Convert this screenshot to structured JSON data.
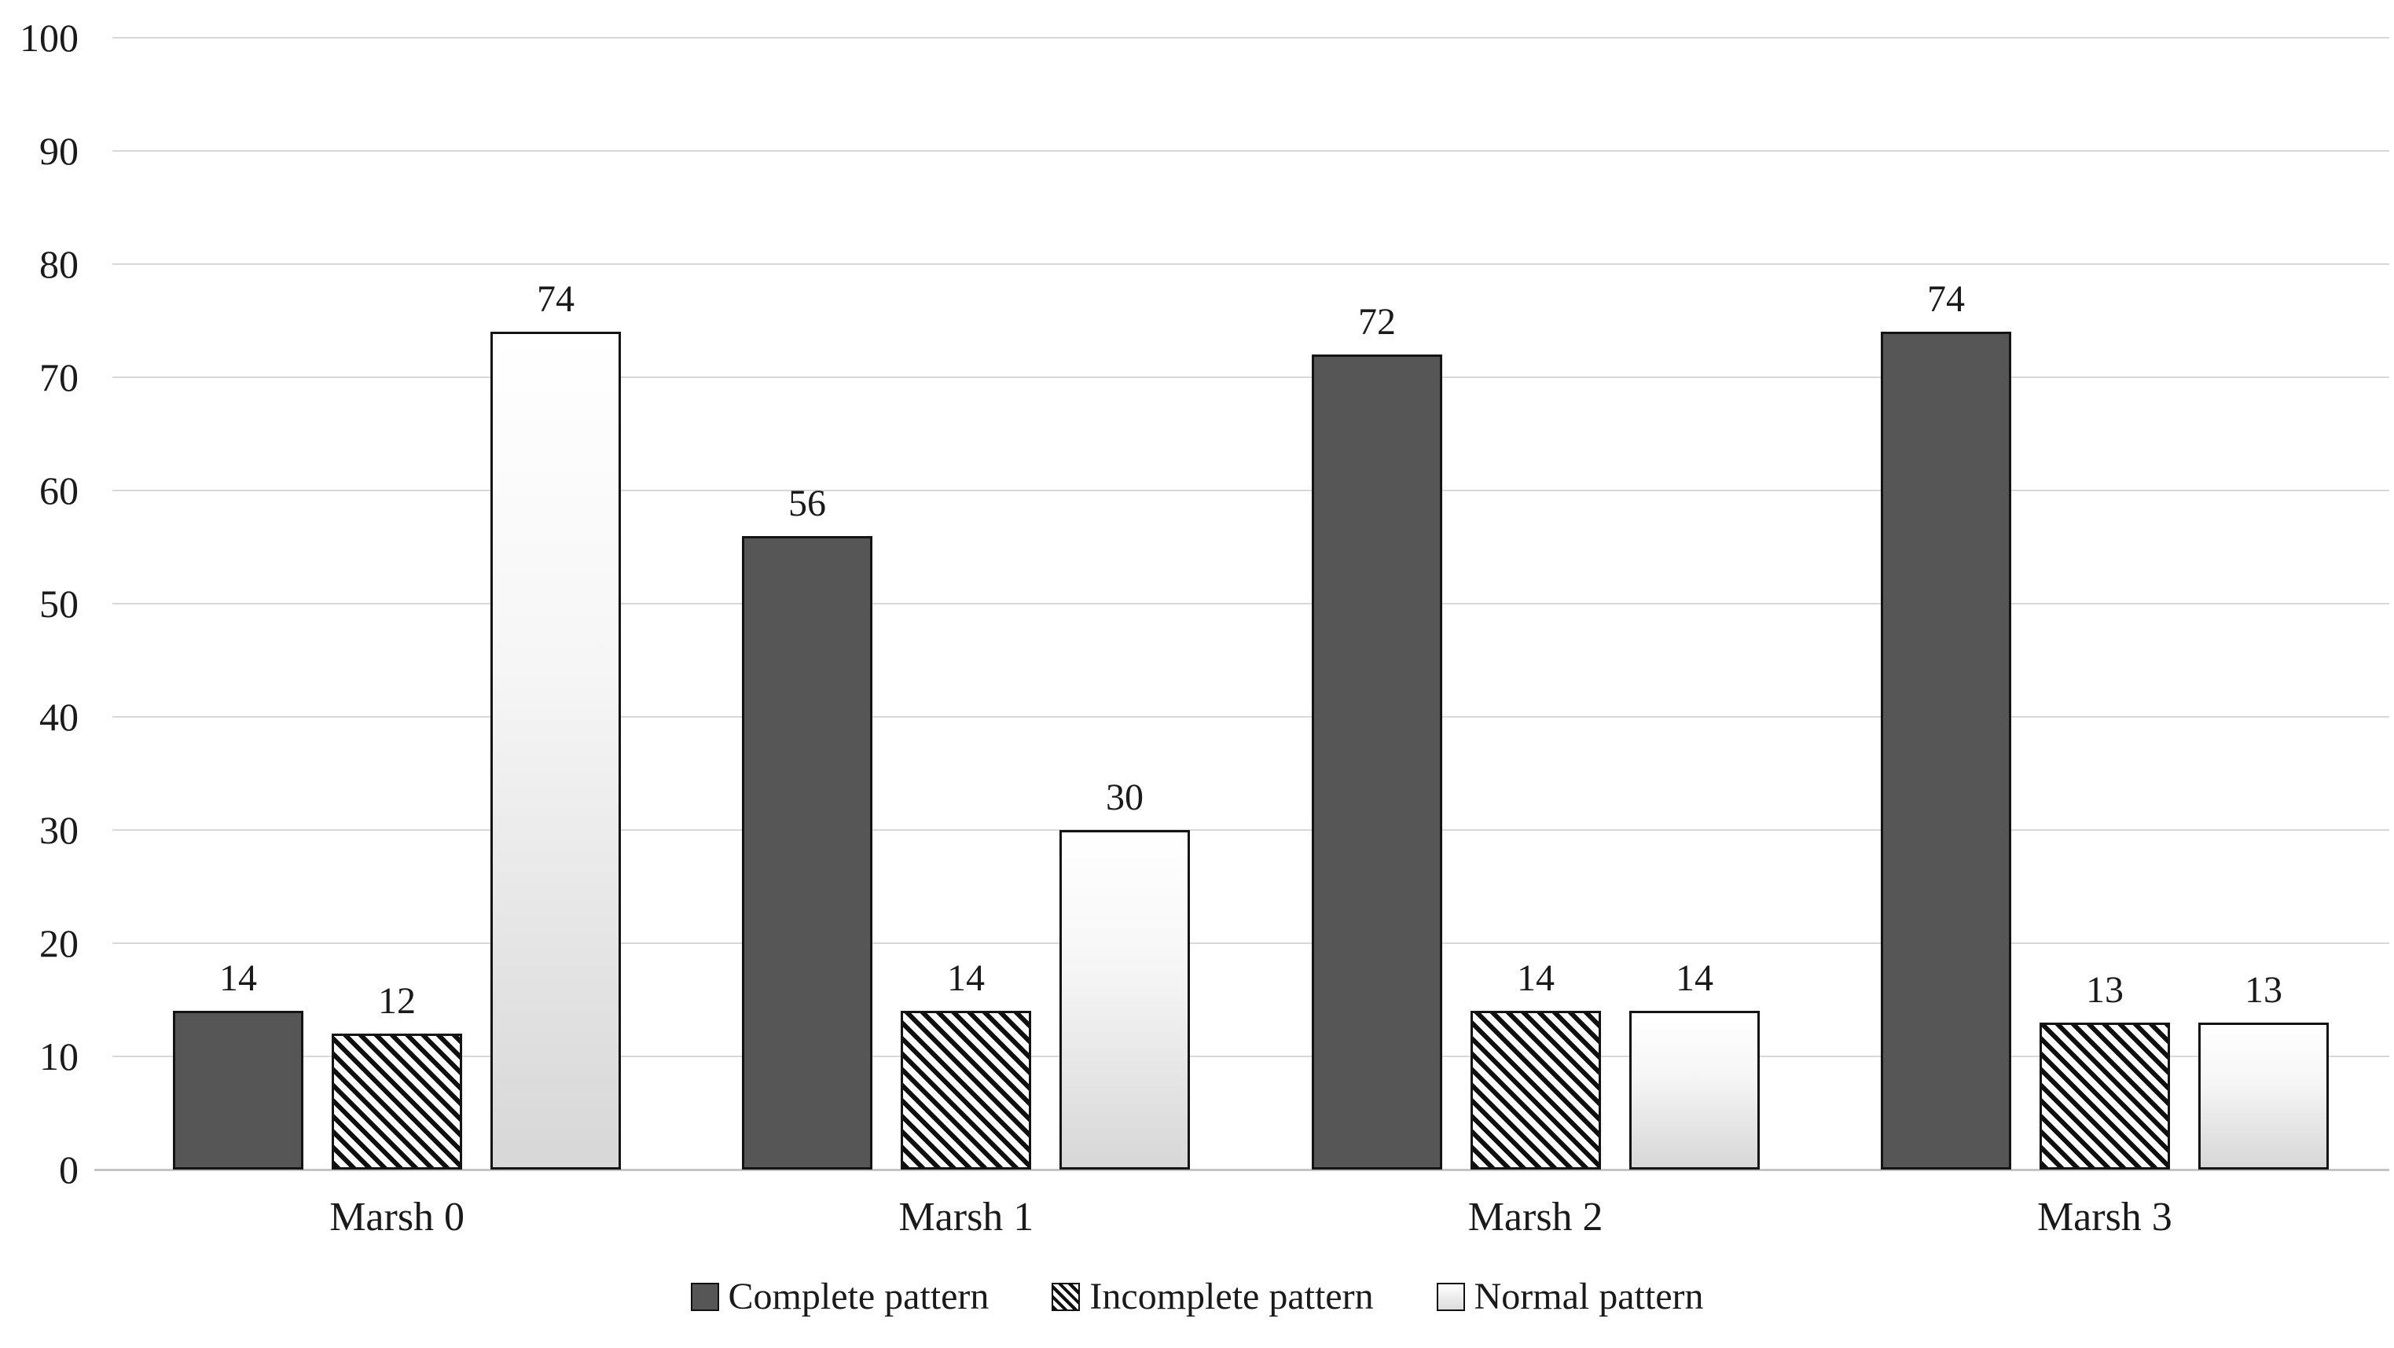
{
  "figure": {
    "background": "#ffffff",
    "text_color": "#1a1a1a"
  },
  "chart_data": {
    "type": "bar",
    "title": "",
    "xlabel": "",
    "ylabel": "",
    "categories": [
      "Marsh 0",
      "Marsh 1",
      "Marsh 2",
      "Marsh 3"
    ],
    "series": [
      {
        "name": "Complete pattern",
        "style": "solid-dark",
        "values": [
          14,
          56,
          72,
          74
        ]
      },
      {
        "name": "Incomplete pattern",
        "style": "diagonal-hatch",
        "values": [
          12,
          14,
          14,
          13
        ]
      },
      {
        "name": "Normal pattern",
        "style": "light-gradient",
        "values": [
          74,
          30,
          14,
          13
        ]
      }
    ],
    "bar_value_labels": true,
    "y_axis": {
      "min": 0,
      "max": 100,
      "step": 10,
      "tick_labels": [
        "0",
        "10",
        "20",
        "30",
        "40",
        "50",
        "60",
        "70",
        "80",
        "90",
        "100"
      ]
    },
    "grid": "horizontal",
    "legend_position": "bottom",
    "colors": {
      "complete_fill": "#565656",
      "hatch_foreground": "#0f0f0f",
      "hatch_background": "#fdfdfd",
      "normal_top": "#ffffff",
      "normal_bottom": "#d7d7d7",
      "bar_border": "#141414",
      "gridline": "#d9d9d9",
      "axis_line": "#c3c3c3",
      "text": "#1a1a1a"
    }
  }
}
